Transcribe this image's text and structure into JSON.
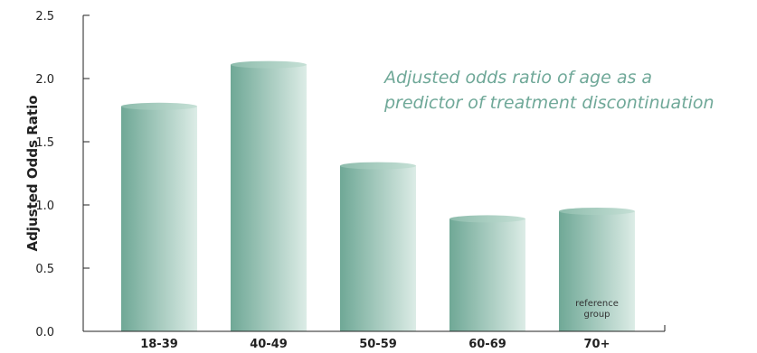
{
  "chart_data": {
    "type": "bar",
    "title_lines": [
      "Adjusted odds ratio of age as a",
      "predictor of treatment discontinuation"
    ],
    "ylabel": "Adjusted Odds Ratio",
    "xlabel": "",
    "categories": [
      "18-39",
      "40-49",
      "50-59",
      "60-69",
      "70+"
    ],
    "values": [
      1.78,
      2.11,
      1.31,
      0.89,
      0.95
    ],
    "ylim": [
      0,
      2.5
    ],
    "yticks": [
      "0.0",
      "0.5",
      "1.0",
      "1.5",
      "2.0",
      "2.5"
    ],
    "annotations": [
      {
        "category": "70+",
        "lines": [
          "reference",
          "group"
        ]
      }
    ],
    "grid": false,
    "legend": "none",
    "colors": {
      "bar_dark": "#6fa896",
      "bar_light": "#dcece6",
      "title": "#6fa898"
    }
  }
}
